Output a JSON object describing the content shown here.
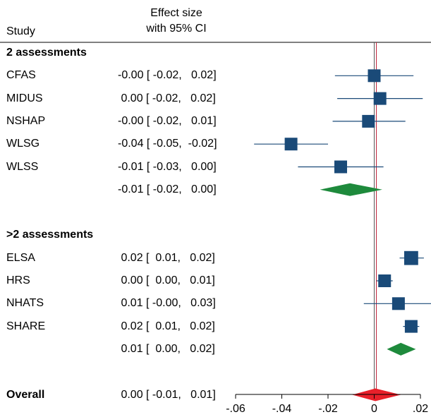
{
  "header": {
    "study_label": "Study",
    "effect_line1": "Effect size",
    "effect_line2": "with 95% CI"
  },
  "chart_data": {
    "type": "forest",
    "xlim": [
      -0.06,
      0.02
    ],
    "xticks": [
      -0.06,
      -0.04,
      -0.02,
      0,
      0.02
    ],
    "xtick_labels": [
      "-.06",
      "-.04",
      "-.02",
      "0",
      ".02"
    ],
    "overall_line": 0.0,
    "rows": [
      {
        "kind": "group",
        "label": "2 assessments"
      },
      {
        "kind": "study",
        "label": "CFAS",
        "est": 0.0,
        "lo": -0.017,
        "hi": 0.017,
        "text": "-0.00 [ -0.02,   0.02]",
        "w": 1.0
      },
      {
        "kind": "study",
        "label": "MIDUS",
        "est": 0.0025,
        "lo": -0.016,
        "hi": 0.021,
        "text": " 0.00 [ -0.02,   0.02]",
        "w": 1.0
      },
      {
        "kind": "study",
        "label": "NSHAP",
        "est": -0.0025,
        "lo": -0.018,
        "hi": 0.0135,
        "text": "-0.00 [ -0.02,   0.01]",
        "w": 1.0
      },
      {
        "kind": "study",
        "label": "WLSG",
        "est": -0.036,
        "lo": -0.052,
        "hi": -0.02,
        "text": "-0.04 [ -0.05,  -0.02]",
        "w": 1.0
      },
      {
        "kind": "study",
        "label": "WLSS",
        "est": -0.0145,
        "lo": -0.033,
        "hi": 0.004,
        "text": "-0.01 [ -0.03,   0.00]",
        "w": 1.0
      },
      {
        "kind": "pooled",
        "label": "",
        "est": -0.0105,
        "lo": -0.0235,
        "hi": 0.0035,
        "text": "-0.01 [ -0.02,   0.00]",
        "color": "#1e8a3c"
      },
      {
        "kind": "blank"
      },
      {
        "kind": "group",
        "label": ">2 assessments"
      },
      {
        "kind": "study",
        "label": "ELSA",
        "est": 0.016,
        "lo": 0.011,
        "hi": 0.0215,
        "text": " 0.02 [  0.01,   0.02]",
        "w": 1.1
      },
      {
        "kind": "study",
        "label": "HRS",
        "est": 0.0045,
        "lo": 0.001,
        "hi": 0.008,
        "text": " 0.00 [  0.00,   0.01]",
        "w": 1.0
      },
      {
        "kind": "study",
        "label": "NHATS",
        "est": 0.0105,
        "lo": -0.0045,
        "hi": 0.025,
        "text": " 0.01 [ -0.00,   0.03]",
        "w": 1.0
      },
      {
        "kind": "study",
        "label": "SHARE",
        "est": 0.016,
        "lo": 0.0125,
        "hi": 0.0195,
        "text": " 0.02 [  0.01,   0.02]",
        "w": 1.0
      },
      {
        "kind": "pooled",
        "label": "",
        "est": 0.0115,
        "lo": 0.0055,
        "hi": 0.018,
        "text": " 0.01 [  0.00,   0.02]",
        "color": "#1e8a3c"
      },
      {
        "kind": "blank"
      },
      {
        "kind": "overall",
        "label": "Overall",
        "est": 0.0005,
        "lo": -0.0095,
        "hi": 0.0115,
        "text": " 0.00 [ -0.01,   0.01]",
        "color": "#e8202a"
      }
    ],
    "colors": {
      "square": "#1a4a78",
      "ci_line": "#1a4a78",
      "zero_line": "#555555",
      "overall_line": "#c0223a"
    }
  }
}
